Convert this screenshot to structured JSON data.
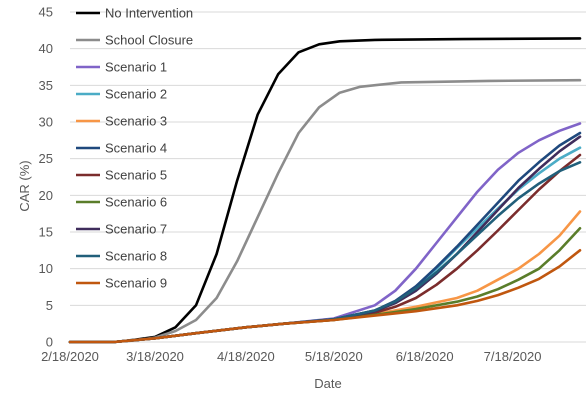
{
  "chart_data": {
    "type": "line",
    "title": "",
    "xlabel": "Date",
    "ylabel": "CAR (%)",
    "ylim": [
      0,
      45
    ],
    "y_ticks": [
      0,
      5,
      10,
      15,
      20,
      25,
      30,
      35,
      40,
      45
    ],
    "x_ticks": [
      "2/18/2020",
      "3/18/2020",
      "4/18/2020",
      "5/18/2020",
      "6/18/2020",
      "7/18/2020"
    ],
    "grid": "horizontal",
    "legend_position": "top-left",
    "series": [
      {
        "name": "No Intervention",
        "color": "#000000",
        "points": [
          [
            "2/18/2020",
            0
          ],
          [
            "3/4/2020",
            0
          ],
          [
            "3/11/2020",
            0.3
          ],
          [
            "3/18/2020",
            0.7
          ],
          [
            "3/25/2020",
            2
          ],
          [
            "4/1/2020",
            5
          ],
          [
            "4/8/2020",
            12
          ],
          [
            "4/15/2020",
            22
          ],
          [
            "4/22/2020",
            31
          ],
          [
            "4/29/2020",
            36.5
          ],
          [
            "5/6/2020",
            39.5
          ],
          [
            "5/13/2020",
            40.6
          ],
          [
            "5/20/2020",
            41
          ],
          [
            "6/1/2020",
            41.2
          ],
          [
            "7/1/2020",
            41.3
          ],
          [
            "8/10/2020",
            41.4
          ]
        ]
      },
      {
        "name": "School Closure",
        "color": "#8c8c8c",
        "points": [
          [
            "2/18/2020",
            0
          ],
          [
            "3/4/2020",
            0
          ],
          [
            "3/11/2020",
            0.2
          ],
          [
            "3/18/2020",
            0.6
          ],
          [
            "3/25/2020",
            1.5
          ],
          [
            "4/1/2020",
            3
          ],
          [
            "4/8/2020",
            6
          ],
          [
            "4/15/2020",
            11
          ],
          [
            "4/22/2020",
            17
          ],
          [
            "4/29/2020",
            23
          ],
          [
            "5/6/2020",
            28.5
          ],
          [
            "5/13/2020",
            32
          ],
          [
            "5/20/2020",
            34
          ],
          [
            "5/27/2020",
            34.8
          ],
          [
            "6/10/2020",
            35.4
          ],
          [
            "7/10/2020",
            35.6
          ],
          [
            "8/10/2020",
            35.7
          ]
        ]
      },
      {
        "name": "Scenario 1",
        "color": "#8064c8",
        "points": [
          [
            "2/18/2020",
            0
          ],
          [
            "3/4/2020",
            0
          ],
          [
            "3/18/2020",
            0.5
          ],
          [
            "4/1/2020",
            1.2
          ],
          [
            "4/18/2020",
            2
          ],
          [
            "5/1/2020",
            2.5
          ],
          [
            "5/18/2020",
            3.2
          ],
          [
            "6/1/2020",
            5
          ],
          [
            "6/8/2020",
            7
          ],
          [
            "6/15/2020",
            10
          ],
          [
            "6/22/2020",
            13.5
          ],
          [
            "6/29/2020",
            17
          ],
          [
            "7/6/2020",
            20.5
          ],
          [
            "7/13/2020",
            23.5
          ],
          [
            "7/20/2020",
            25.8
          ],
          [
            "7/27/2020",
            27.5
          ],
          [
            "8/3/2020",
            28.8
          ],
          [
            "8/10/2020",
            29.8
          ]
        ]
      },
      {
        "name": "Scenario 2",
        "color": "#4bacc6",
        "points": [
          [
            "2/18/2020",
            0
          ],
          [
            "3/4/2020",
            0
          ],
          [
            "3/18/2020",
            0.5
          ],
          [
            "4/1/2020",
            1.2
          ],
          [
            "4/18/2020",
            2
          ],
          [
            "5/1/2020",
            2.5
          ],
          [
            "5/18/2020",
            3.1
          ],
          [
            "6/1/2020",
            4.3
          ],
          [
            "6/8/2020",
            5.5
          ],
          [
            "6/15/2020",
            7.5
          ],
          [
            "6/22/2020",
            10
          ],
          [
            "6/29/2020",
            12.8
          ],
          [
            "7/6/2020",
            15.5
          ],
          [
            "7/13/2020",
            18.2
          ],
          [
            "7/20/2020",
            20.8
          ],
          [
            "7/27/2020",
            23
          ],
          [
            "8/3/2020",
            25
          ],
          [
            "8/10/2020",
            26.5
          ]
        ]
      },
      {
        "name": "Scenario 3",
        "color": "#f79646",
        "points": [
          [
            "2/18/2020",
            0
          ],
          [
            "3/4/2020",
            0
          ],
          [
            "3/18/2020",
            0.5
          ],
          [
            "4/1/2020",
            1.2
          ],
          [
            "4/18/2020",
            2
          ],
          [
            "5/1/2020",
            2.5
          ],
          [
            "5/18/2020",
            3
          ],
          [
            "6/1/2020",
            3.8
          ],
          [
            "6/15/2020",
            4.8
          ],
          [
            "6/29/2020",
            6
          ],
          [
            "7/6/2020",
            7
          ],
          [
            "7/13/2020",
            8.5
          ],
          [
            "7/20/2020",
            10
          ],
          [
            "7/27/2020",
            12
          ],
          [
            "8/3/2020",
            14.5
          ],
          [
            "8/10/2020",
            17.8
          ]
        ]
      },
      {
        "name": "Scenario 4",
        "color": "#1f497d",
        "points": [
          [
            "2/18/2020",
            0
          ],
          [
            "3/4/2020",
            0
          ],
          [
            "3/18/2020",
            0.5
          ],
          [
            "4/1/2020",
            1.2
          ],
          [
            "4/18/2020",
            2
          ],
          [
            "5/1/2020",
            2.5
          ],
          [
            "5/18/2020",
            3.1
          ],
          [
            "6/1/2020",
            4.3
          ],
          [
            "6/8/2020",
            5.6
          ],
          [
            "6/15/2020",
            7.6
          ],
          [
            "6/22/2020",
            10.2
          ],
          [
            "6/29/2020",
            13
          ],
          [
            "7/6/2020",
            16
          ],
          [
            "7/13/2020",
            19
          ],
          [
            "7/20/2020",
            22
          ],
          [
            "7/27/2020",
            24.5
          ],
          [
            "8/3/2020",
            26.8
          ],
          [
            "8/10/2020",
            28.5
          ]
        ]
      },
      {
        "name": "Scenario 5",
        "color": "#7b2c2c",
        "points": [
          [
            "2/18/2020",
            0
          ],
          [
            "3/4/2020",
            0
          ],
          [
            "3/18/2020",
            0.5
          ],
          [
            "4/1/2020",
            1.2
          ],
          [
            "4/18/2020",
            2
          ],
          [
            "5/1/2020",
            2.5
          ],
          [
            "5/18/2020",
            3
          ],
          [
            "6/1/2020",
            4
          ],
          [
            "6/8/2020",
            4.8
          ],
          [
            "6/15/2020",
            6
          ],
          [
            "6/22/2020",
            7.8
          ],
          [
            "6/29/2020",
            10
          ],
          [
            "7/6/2020",
            12.5
          ],
          [
            "7/13/2020",
            15.2
          ],
          [
            "7/20/2020",
            18
          ],
          [
            "7/27/2020",
            20.8
          ],
          [
            "8/3/2020",
            23.3
          ],
          [
            "8/10/2020",
            25.5
          ]
        ]
      },
      {
        "name": "Scenario 6",
        "color": "#5a7d2a",
        "points": [
          [
            "2/18/2020",
            0
          ],
          [
            "3/4/2020",
            0
          ],
          [
            "3/18/2020",
            0.5
          ],
          [
            "4/1/2020",
            1.2
          ],
          [
            "4/18/2020",
            2
          ],
          [
            "5/1/2020",
            2.5
          ],
          [
            "5/18/2020",
            3
          ],
          [
            "6/1/2020",
            3.7
          ],
          [
            "6/15/2020",
            4.5
          ],
          [
            "6/29/2020",
            5.5
          ],
          [
            "7/6/2020",
            6.2
          ],
          [
            "7/13/2020",
            7.2
          ],
          [
            "7/20/2020",
            8.5
          ],
          [
            "7/27/2020",
            10
          ],
          [
            "8/3/2020",
            12.5
          ],
          [
            "8/10/2020",
            15.5
          ]
        ]
      },
      {
        "name": "Scenario 7",
        "color": "#3f2d5c",
        "points": [
          [
            "2/18/2020",
            0
          ],
          [
            "3/4/2020",
            0
          ],
          [
            "3/18/2020",
            0.5
          ],
          [
            "4/1/2020",
            1.2
          ],
          [
            "4/18/2020",
            2
          ],
          [
            "5/1/2020",
            2.5
          ],
          [
            "5/18/2020",
            3.1
          ],
          [
            "6/1/2020",
            4.2
          ],
          [
            "6/8/2020",
            5.3
          ],
          [
            "6/15/2020",
            7
          ],
          [
            "6/22/2020",
            9.3
          ],
          [
            "6/29/2020",
            12
          ],
          [
            "7/6/2020",
            15
          ],
          [
            "7/13/2020",
            18
          ],
          [
            "7/20/2020",
            21
          ],
          [
            "7/27/2020",
            23.6
          ],
          [
            "8/3/2020",
            26
          ],
          [
            "8/10/2020",
            28
          ]
        ]
      },
      {
        "name": "Scenario 8",
        "color": "#215f7a",
        "points": [
          [
            "2/18/2020",
            0
          ],
          [
            "3/4/2020",
            0
          ],
          [
            "3/18/2020",
            0.5
          ],
          [
            "4/1/2020",
            1.2
          ],
          [
            "4/18/2020",
            2
          ],
          [
            "5/1/2020",
            2.5
          ],
          [
            "5/18/2020",
            3.1
          ],
          [
            "6/1/2020",
            4.3
          ],
          [
            "6/8/2020",
            5.5
          ],
          [
            "6/15/2020",
            7.3
          ],
          [
            "6/22/2020",
            9.5
          ],
          [
            "6/29/2020",
            12
          ],
          [
            "7/6/2020",
            14.6
          ],
          [
            "7/13/2020",
            17.2
          ],
          [
            "7/20/2020",
            19.6
          ],
          [
            "7/27/2020",
            21.6
          ],
          [
            "8/3/2020",
            23.3
          ],
          [
            "8/10/2020",
            24.5
          ]
        ]
      },
      {
        "name": "Scenario 9",
        "color": "#c0570f",
        "points": [
          [
            "2/18/2020",
            0
          ],
          [
            "3/4/2020",
            0
          ],
          [
            "3/18/2020",
            0.5
          ],
          [
            "4/1/2020",
            1.2
          ],
          [
            "4/18/2020",
            2
          ],
          [
            "5/1/2020",
            2.5
          ],
          [
            "5/18/2020",
            3
          ],
          [
            "6/1/2020",
            3.6
          ],
          [
            "6/15/2020",
            4.2
          ],
          [
            "6/29/2020",
            5
          ],
          [
            "7/6/2020",
            5.6
          ],
          [
            "7/13/2020",
            6.4
          ],
          [
            "7/20/2020",
            7.4
          ],
          [
            "7/27/2020",
            8.6
          ],
          [
            "8/3/2020",
            10.3
          ],
          [
            "8/10/2020",
            12.5
          ]
        ]
      }
    ]
  }
}
